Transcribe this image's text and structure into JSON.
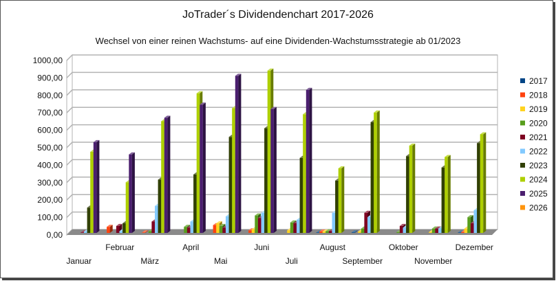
{
  "chart_data": {
    "type": "bar",
    "title": "JoTrader´s Dividendenchart 2017-2026",
    "subtitle": "Wechsel von einer reinen Wachstums- auf eine Dividenden-Wachstumsstrategie ab 01/2023",
    "xlabel": "",
    "ylabel": "",
    "ylim": [
      0,
      1000
    ],
    "yticks": [
      0,
      100,
      200,
      300,
      400,
      500,
      600,
      700,
      800,
      900,
      1000
    ],
    "ytick_labels": [
      "0,00",
      "100,00",
      "200,00",
      "300,00",
      "400,00",
      "500,00",
      "600,00",
      "700,00",
      "800,00",
      "900,00",
      "1000,00"
    ],
    "grid": true,
    "legend_position": "right",
    "categories": [
      "Januar",
      "Februar",
      "März",
      "April",
      "Mai",
      "Juni",
      "Juli",
      "August",
      "September",
      "Oktober",
      "November",
      "Dezember"
    ],
    "series": [
      {
        "name": "2017",
        "color": "#004586",
        "values": [
          0,
          0,
          0,
          0,
          0,
          0,
          0,
          2,
          3,
          0,
          0,
          2
        ]
      },
      {
        "name": "2018",
        "color": "#ff420e",
        "values": [
          0,
          35,
          3,
          0,
          45,
          15,
          0,
          8,
          0,
          0,
          0,
          5
        ]
      },
      {
        "name": "2019",
        "color": "#ffd320",
        "values": [
          0,
          0,
          0,
          0,
          55,
          20,
          15,
          8,
          8,
          0,
          5,
          25
        ]
      },
      {
        "name": "2020",
        "color": "#579d1c",
        "values": [
          0,
          0,
          10,
          35,
          40,
          100,
          60,
          10,
          25,
          5,
          25,
          90
        ]
      },
      {
        "name": "2021",
        "color": "#7e0021",
        "values": [
          3,
          40,
          65,
          30,
          30,
          85,
          55,
          10,
          115,
          40,
          25,
          55
        ]
      },
      {
        "name": "2022",
        "color": "#83caff",
        "values": [
          8,
          10,
          155,
          65,
          95,
          115,
          75,
          115,
          90,
          30,
          25,
          130
        ]
      },
      {
        "name": "2023",
        "color": "#314004",
        "values": [
          145,
          55,
          305,
          335,
          550,
          600,
          430,
          300,
          635,
          440,
          375,
          515
        ]
      },
      {
        "name": "2024",
        "color": "#aecf00",
        "values": [
          465,
          290,
          640,
          800,
          715,
          930,
          680,
          370,
          690,
          500,
          435,
          565
        ]
      },
      {
        "name": "2025",
        "color": "#4b1f6f",
        "values": [
          520,
          450,
          660,
          735,
          900,
          710,
          820,
          0,
          0,
          0,
          0,
          0
        ]
      },
      {
        "name": "2026",
        "color": "#ff950e",
        "values": [
          0,
          0,
          0,
          0,
          0,
          0,
          0,
          0,
          0,
          0,
          0,
          0
        ]
      }
    ]
  }
}
